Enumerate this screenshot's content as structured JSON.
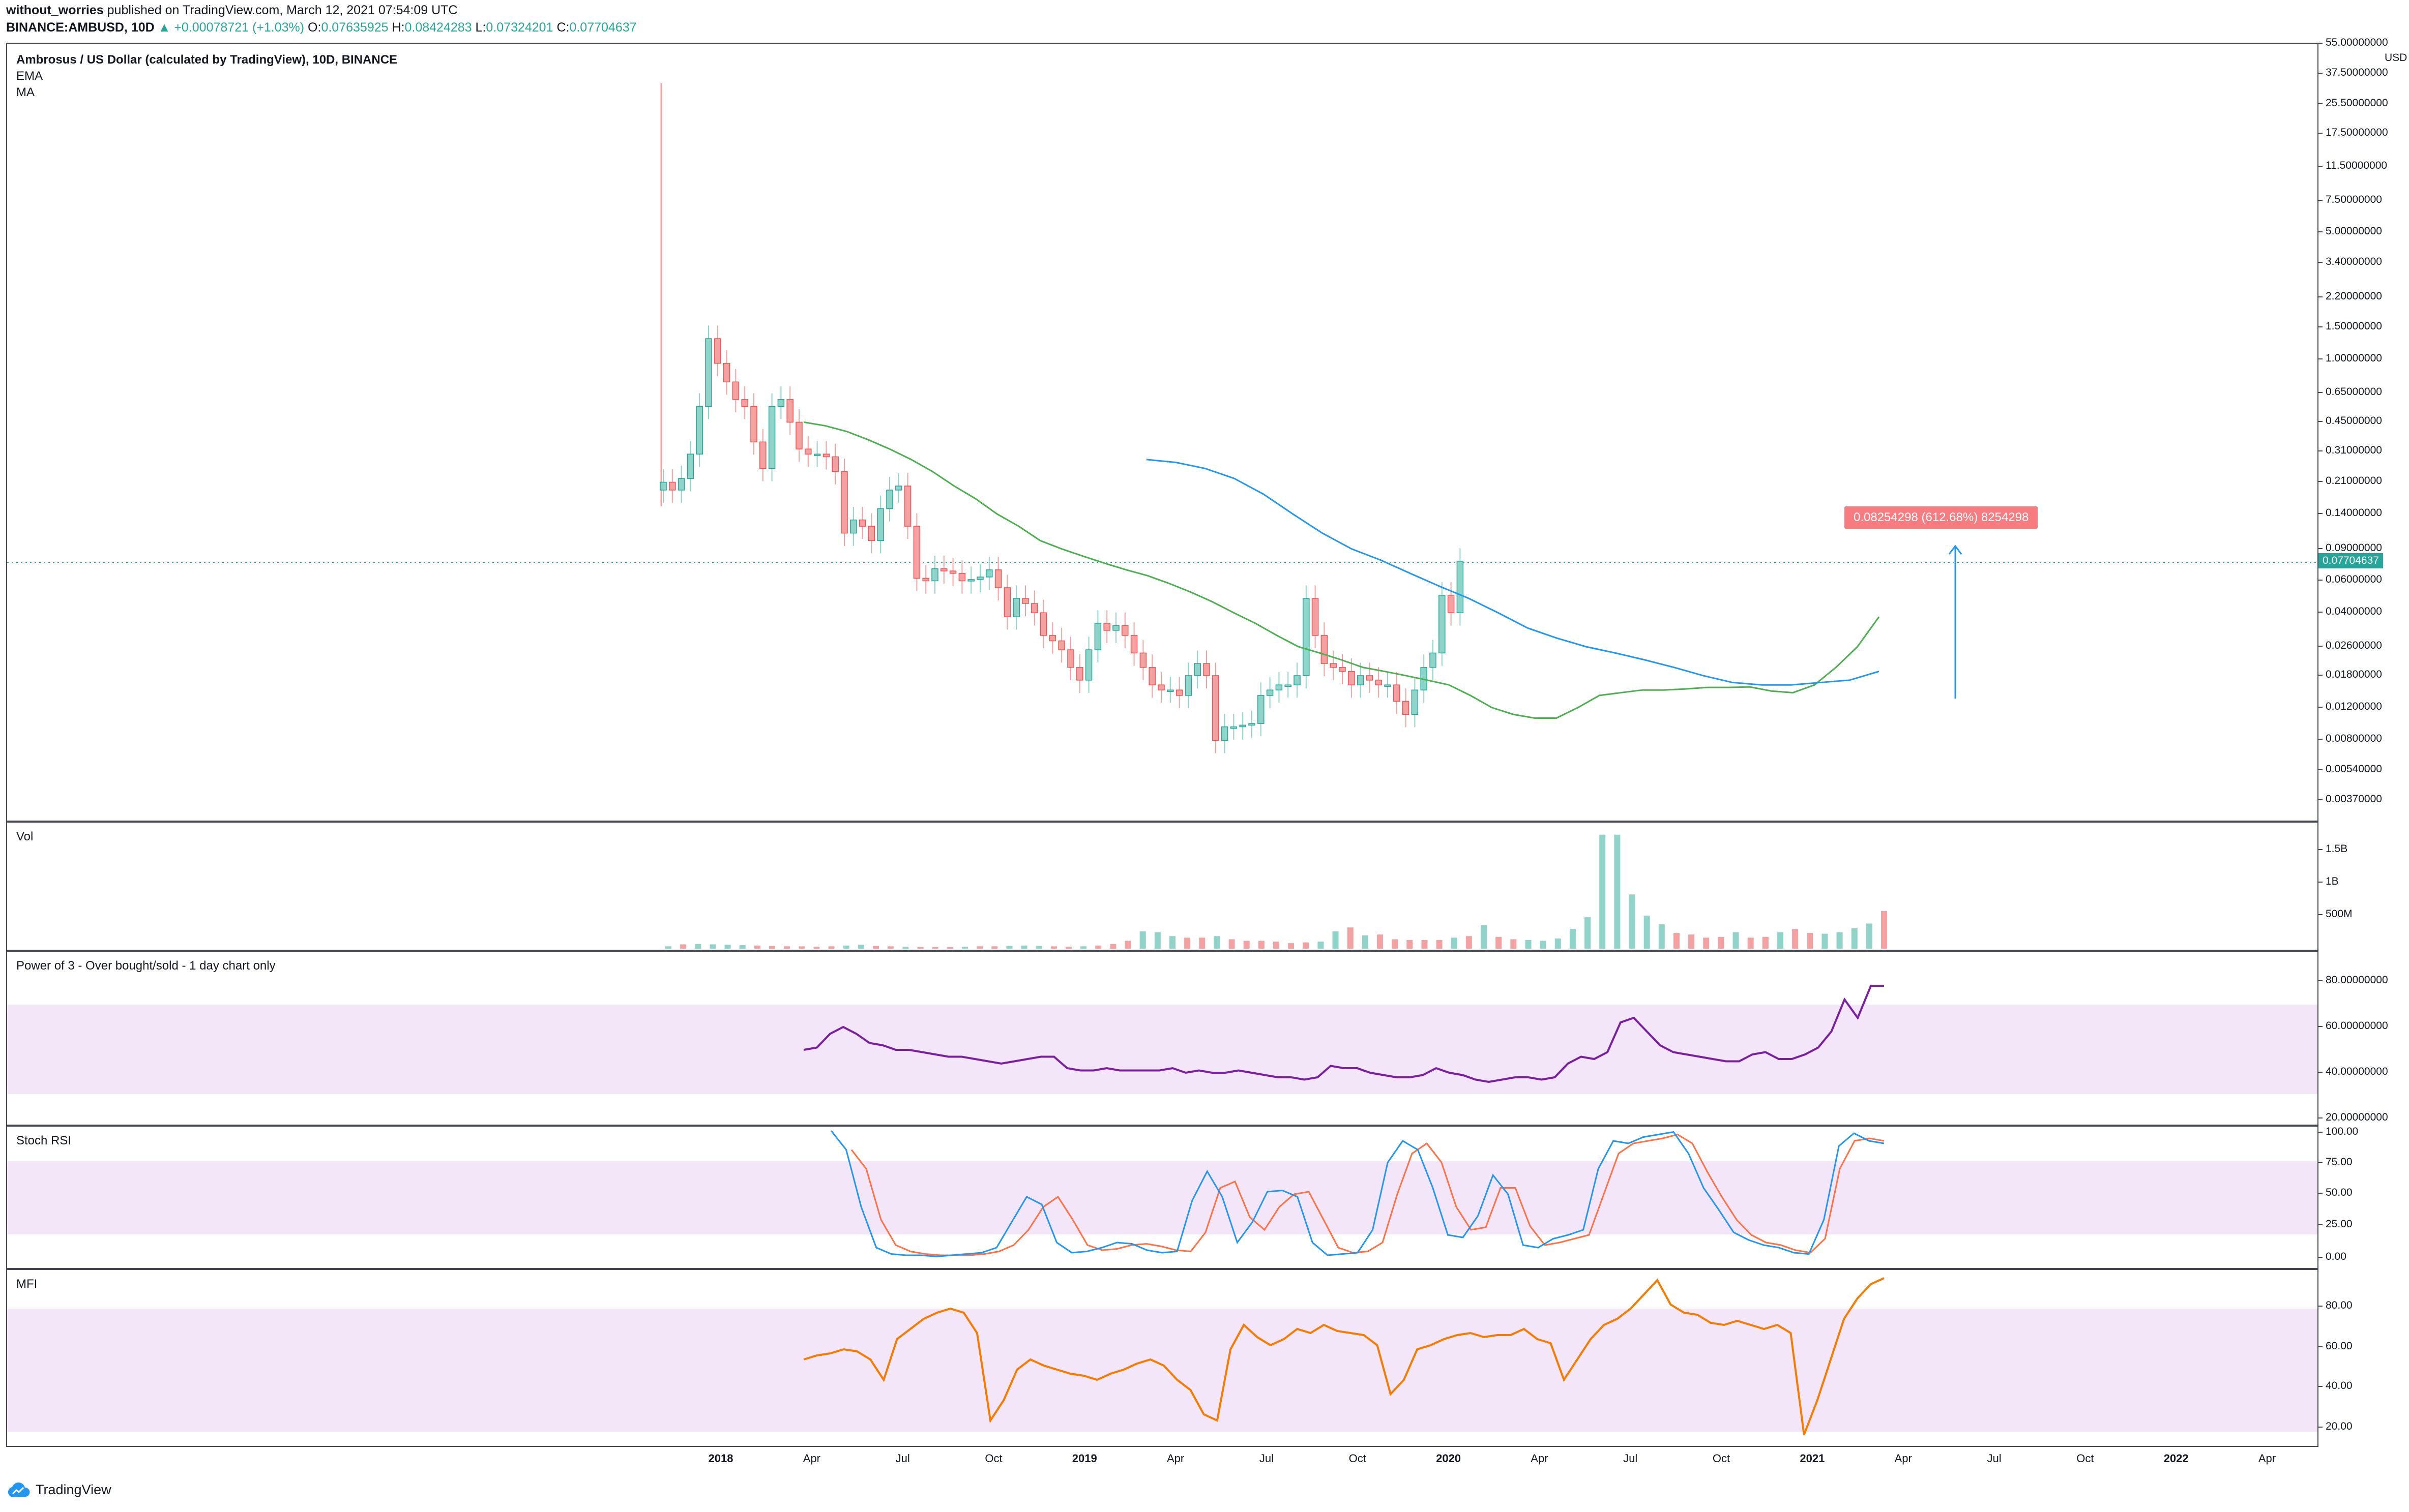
{
  "header": {
    "author": "without_worries",
    "published_text": "published on TradingView.com, March 12, 2021 07:54:09 UTC",
    "symbol": "BINANCE:AMBUSD, 10D",
    "change": "▲ +0.00078721 (+1.03%)",
    "o_label": "O:",
    "o_value": "0.07635925",
    "h_label": "H:",
    "h_value": "0.08424283",
    "l_label": "L:",
    "l_value": "0.07324201",
    "c_label": "C:",
    "c_value": "0.07704637"
  },
  "main_pane": {
    "title": "Ambrosus / US Dollar (calculated by TradingView), 10D, BINANCE",
    "ema_label": "EMA",
    "ma_label": "MA",
    "currency": "USD",
    "last_price_badge": "0.07704637",
    "measure_label": "0.08254298 (612.68%) 8254298"
  },
  "vol_pane": {
    "title": "Vol",
    "ticks": [
      "1.5B",
      "1B",
      "500M"
    ]
  },
  "p3_pane": {
    "title": "Power of 3 - Over bought/sold - 1 day chart only",
    "ticks": [
      "80.00000000",
      "60.00000000",
      "40.00000000",
      "20.00000000"
    ]
  },
  "stoch_pane": {
    "title": "Stoch RSI",
    "ticks": [
      "100.00",
      "75.00",
      "50.00",
      "25.00",
      "0.00"
    ]
  },
  "mfi_pane": {
    "title": "MFI",
    "ticks": [
      "80.00",
      "60.00",
      "40.00",
      "20.00"
    ]
  },
  "branding": {
    "logo_text": "TradingView"
  },
  "colors": {
    "up": "#26a69a",
    "down": "#ef5350",
    "up_fill": "#8fd3c9",
    "down_fill": "#f4a1a1",
    "ema": "#4caf50",
    "ma": "#2196f3",
    "p3": "#7b1fa2",
    "stoch_k": "#2196f3",
    "stoch_d": "#ff7043",
    "mfi": "#f57c00",
    "band": "#f4e6f9",
    "measure": "#f77c80",
    "arrow": "#2196f3"
  },
  "chart_data": {
    "type": "candlestick",
    "scale": "log",
    "price_axis_ticks": [
      "55.00000000",
      "37.50000000",
      "25.50000000",
      "17.50000000",
      "11.50000000",
      "7.50000000",
      "5.00000000",
      "3.40000000",
      "2.20000000",
      "1.50000000",
      "1.00000000",
      "0.65000000",
      "0.45000000",
      "0.31000000",
      "0.21000000",
      "0.14000000",
      "0.09000000",
      "0.06000000",
      "0.04000000",
      "0.02600000",
      "0.01800000",
      "0.01200000",
      "0.00800000",
      "0.00540000",
      "0.00370000"
    ],
    "time_axis_ticks": [
      {
        "label": "2018",
        "bold": true
      },
      {
        "label": "Apr"
      },
      {
        "label": "Jul"
      },
      {
        "label": "Oct"
      },
      {
        "label": "2019",
        "bold": true
      },
      {
        "label": "Apr"
      },
      {
        "label": "Jul"
      },
      {
        "label": "Oct"
      },
      {
        "label": "2020",
        "bold": true
      },
      {
        "label": "Apr"
      },
      {
        "label": "Jul"
      },
      {
        "label": "Oct"
      },
      {
        "label": "2021",
        "bold": true
      },
      {
        "label": "Apr"
      },
      {
        "label": "Jul"
      },
      {
        "label": "Oct"
      },
      {
        "label": "2022",
        "bold": true
      },
      {
        "label": "Apr"
      }
    ],
    "candle_closes": [
      0.21,
      0.19,
      0.22,
      0.3,
      0.55,
      1.3,
      0.95,
      0.75,
      0.6,
      0.55,
      0.35,
      0.25,
      0.55,
      0.6,
      0.45,
      0.32,
      0.3,
      0.3,
      0.29,
      0.24,
      0.11,
      0.13,
      0.12,
      0.1,
      0.15,
      0.19,
      0.2,
      0.12,
      0.062,
      0.06,
      0.07,
      0.068,
      0.066,
      0.06,
      0.061,
      0.063,
      0.069,
      0.055,
      0.038,
      0.048,
      0.045,
      0.04,
      0.03,
      0.028,
      0.025,
      0.02,
      0.017,
      0.025,
      0.035,
      0.032,
      0.034,
      0.03,
      0.024,
      0.02,
      0.016,
      0.015,
      0.015,
      0.014,
      0.018,
      0.021,
      0.018,
      0.0079,
      0.0094,
      0.0094,
      0.0096,
      0.0098,
      0.014,
      0.015,
      0.016,
      0.016,
      0.018,
      0.048,
      0.03,
      0.021,
      0.02,
      0.019,
      0.016,
      0.018,
      0.017,
      0.016,
      0.016,
      0.013,
      0.011,
      0.015,
      0.02,
      0.024,
      0.05,
      0.04,
      0.077
    ],
    "ema_values": [
      0.45,
      0.43,
      0.4,
      0.36,
      0.32,
      0.28,
      0.24,
      0.2,
      0.17,
      0.14,
      0.12,
      0.1,
      0.09,
      0.082,
      0.075,
      0.069,
      0.064,
      0.058,
      0.052,
      0.046,
      0.04,
      0.035,
      0.03,
      0.026,
      0.024,
      0.022,
      0.02,
      0.019,
      0.018,
      0.017,
      0.016,
      0.014,
      0.012,
      0.011,
      0.0105,
      0.0105,
      0.012,
      0.014,
      0.0145,
      0.015,
      0.015,
      0.0152,
      0.0155,
      0.0155,
      0.0156,
      0.0148,
      0.0145,
      0.016,
      0.02,
      0.026,
      0.038
    ],
    "ma_values": [
      0.28,
      0.27,
      0.25,
      0.22,
      0.18,
      0.14,
      0.11,
      0.09,
      0.078,
      0.066,
      0.056,
      0.048,
      0.04,
      0.033,
      0.029,
      0.026,
      0.024,
      0.022,
      0.02,
      0.018,
      0.0165,
      0.016,
      0.016,
      0.0165,
      0.017,
      0.019
    ],
    "volume_millions": [
      30,
      55,
      60,
      55,
      50,
      45,
      40,
      35,
      30,
      30,
      25,
      30,
      40,
      50,
      35,
      30,
      25,
      20,
      20,
      20,
      25,
      30,
      30,
      35,
      40,
      35,
      30,
      25,
      30,
      40,
      60,
      100,
      220,
      210,
      160,
      140,
      140,
      160,
      120,
      100,
      100,
      90,
      70,
      80,
      90,
      220,
      270,
      170,
      180,
      120,
      110,
      110,
      110,
      140,
      160,
      300,
      150,
      120,
      110,
      100,
      130,
      250,
      400,
      1450,
      1450,
      690,
      420,
      310,
      200,
      180,
      140,
      150,
      210,
      140,
      150,
      210,
      250,
      200,
      190,
      210,
      260,
      320,
      480
    ],
    "p3_values": [
      50,
      51,
      57,
      60,
      57,
      53,
      52,
      50,
      50,
      49,
      48,
      47,
      47,
      46,
      45,
      44,
      45,
      46,
      47,
      47,
      42,
      41,
      41,
      42,
      41,
      41,
      41,
      41,
      42,
      40,
      41,
      40,
      40,
      41,
      40,
      39,
      38,
      38,
      37,
      38,
      43,
      42,
      42,
      40,
      39,
      38,
      38,
      39,
      42,
      40,
      39,
      37,
      36,
      37,
      38,
      38,
      37,
      38,
      44,
      47,
      46,
      49,
      62,
      64,
      58,
      52,
      49,
      48,
      47,
      46,
      45,
      45,
      48,
      49,
      46,
      46,
      48,
      51,
      58,
      72,
      64,
      78,
      78
    ],
    "stoch_k": [
      100,
      85,
      40,
      8,
      3,
      2,
      2,
      1,
      2,
      3,
      4,
      8,
      28,
      48,
      42,
      12,
      4,
      5,
      8,
      12,
      11,
      6,
      4,
      5,
      45,
      68,
      48,
      12,
      28,
      52,
      53,
      48,
      12,
      2,
      3,
      4,
      22,
      75,
      92,
      85,
      55,
      18,
      16,
      33,
      65,
      50,
      10,
      8,
      15,
      18,
      22,
      70,
      92,
      90,
      95,
      97,
      99,
      82,
      55,
      38,
      20,
      14,
      10,
      8,
      4,
      3,
      30,
      88,
      98,
      92,
      90
    ],
    "stoch_d": [
      85,
      70,
      30,
      10,
      5,
      3,
      2,
      2,
      2,
      3,
      5,
      10,
      22,
      40,
      48,
      30,
      10,
      6,
      7,
      10,
      11,
      9,
      6,
      5,
      20,
      55,
      60,
      32,
      22,
      40,
      50,
      52,
      30,
      8,
      4,
      5,
      12,
      50,
      82,
      90,
      75,
      40,
      22,
      24,
      55,
      55,
      25,
      10,
      12,
      15,
      18,
      50,
      82,
      90,
      92,
      94,
      97,
      90,
      68,
      48,
      30,
      18,
      12,
      10,
      6,
      4,
      15,
      70,
      92,
      94,
      92
    ],
    "mfi_values": [
      55,
      57,
      58,
      60,
      59,
      55,
      45,
      65,
      70,
      75,
      78,
      80,
      78,
      68,
      25,
      35,
      50,
      55,
      52,
      50,
      48,
      47,
      45,
      48,
      50,
      53,
      55,
      52,
      45,
      40,
      28,
      25,
      60,
      72,
      66,
      62,
      65,
      70,
      68,
      72,
      69,
      68,
      67,
      62,
      38,
      45,
      60,
      62,
      65,
      67,
      68,
      66,
      67,
      67,
      70,
      65,
      63,
      45,
      55,
      65,
      72,
      75,
      80,
      87,
      94,
      82,
      78,
      77,
      73,
      72,
      74,
      72,
      70,
      72,
      68,
      18,
      35,
      55,
      75,
      85,
      92,
      95
    ]
  }
}
